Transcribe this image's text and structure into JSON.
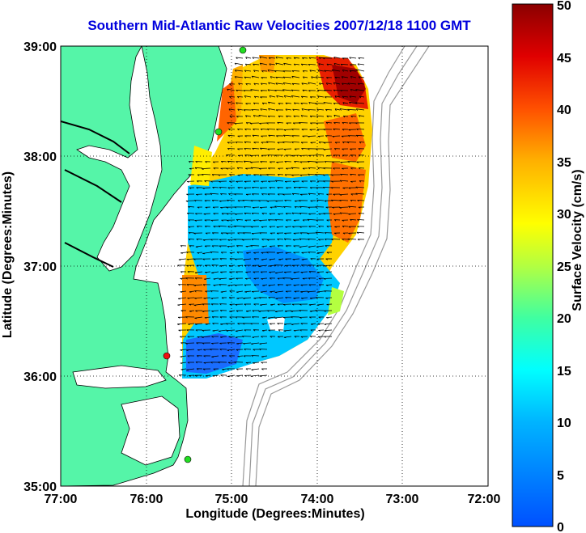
{
  "title": "Southern Mid-Atlantic Raw Velocities 2007/12/18 1100 GMT",
  "x_axis": {
    "label": "Longitude (Degrees:Minutes)",
    "ticks": [
      "77:00",
      "76:00",
      "75:00",
      "74:00",
      "73:00",
      "72:00"
    ]
  },
  "y_axis": {
    "label": "Latitude (Degrees:Minutes)",
    "ticks": [
      "39:00",
      "38:00",
      "37:00",
      "36:00",
      "35:00"
    ]
  },
  "colorbar": {
    "label": "Surface Velocity (cm/s)",
    "ticks": [
      "0",
      "5",
      "10",
      "15",
      "20",
      "25",
      "30",
      "35",
      "40",
      "45",
      "50"
    ],
    "min": 0,
    "max": 50,
    "colormap": "jet"
  },
  "colors": {
    "land": "#55f5a8",
    "water": "#ffffff",
    "coastline": "#000000",
    "bathymetry": "#999999",
    "title": "#0000dd",
    "station_green": "#22dd22",
    "station_red": "#ee1111"
  },
  "map": {
    "lon_range": [
      -77,
      -72
    ],
    "lat_range": [
      35,
      39
    ],
    "grid": "dotted",
    "vector_color": "#000000"
  }
}
